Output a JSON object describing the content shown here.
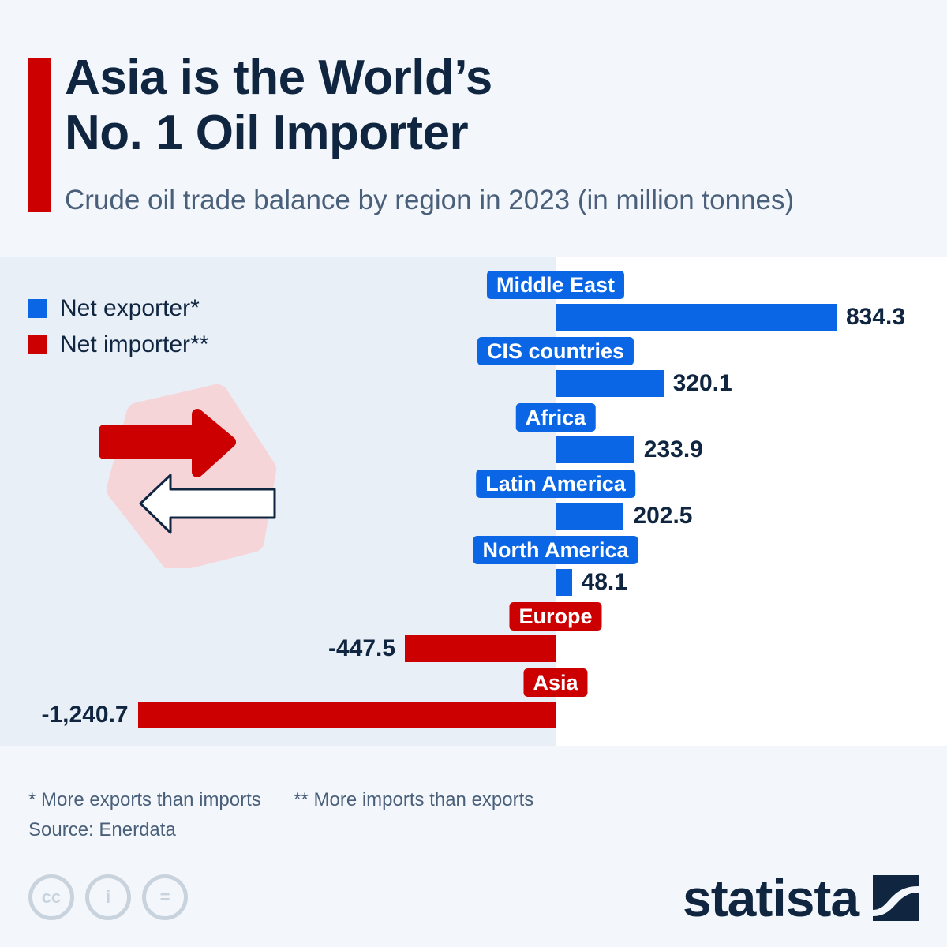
{
  "header": {
    "title_line1": "Asia is the World’s",
    "title_line2": "No. 1 Oil Importer",
    "subtitle": "Crude oil trade balance by region in 2023 (in million tonnes)"
  },
  "legend": {
    "items": [
      {
        "label": "Net exporter*",
        "color": "#0a66e4"
      },
      {
        "label": "Net importer**",
        "color": "#cc0000"
      }
    ]
  },
  "colors": {
    "exporter": "#0a66e4",
    "importer": "#cc0000",
    "accent": "#cc0000",
    "text": "#0f2540"
  },
  "rows": [
    {
      "region": "Middle East",
      "value": 834.3,
      "display": "834.3",
      "type": "exporter"
    },
    {
      "region": "CIS countries",
      "value": 320.1,
      "display": "320.1",
      "type": "exporter"
    },
    {
      "region": "Africa",
      "value": 233.9,
      "display": "233.9",
      "type": "exporter"
    },
    {
      "region": "Latin America",
      "value": 202.5,
      "display": "202.5",
      "type": "exporter"
    },
    {
      "region": "North America",
      "value": 48.1,
      "display": "48.1",
      "type": "exporter"
    },
    {
      "region": "Europe",
      "value": -447.5,
      "display": "-447.5",
      "type": "importer"
    },
    {
      "region": "Asia",
      "value": -1240.7,
      "display": "-1,240.7",
      "type": "importer"
    }
  ],
  "chart_data": {
    "type": "bar",
    "orientation": "horizontal",
    "title": "Asia is the World’s No. 1 Oil Importer",
    "subtitle": "Crude oil trade balance by region in 2023 (in million tonnes)",
    "categories": [
      "Middle East",
      "CIS countries",
      "Africa",
      "Latin America",
      "North America",
      "Europe",
      "Asia"
    ],
    "values": [
      834.3,
      320.1,
      233.9,
      202.5,
      48.1,
      -447.5,
      -1240.7
    ],
    "legend": [
      "Net exporter*",
      "Net importer**"
    ],
    "legend_position": "top-left",
    "xlabel": "",
    "ylabel": "",
    "grid": false,
    "annotations": [
      "* More exports than imports",
      "** More imports than exports"
    ]
  },
  "footer": {
    "footnote_1": "* More exports than imports",
    "footnote_2": "** More imports than exports",
    "source": "Source: Enerdata",
    "cc_icons": [
      "cc-icon",
      "attribution-icon",
      "no-derivatives-icon"
    ],
    "cc_labels": [
      "cc",
      "i",
      "="
    ],
    "logo_text": "statista"
  }
}
